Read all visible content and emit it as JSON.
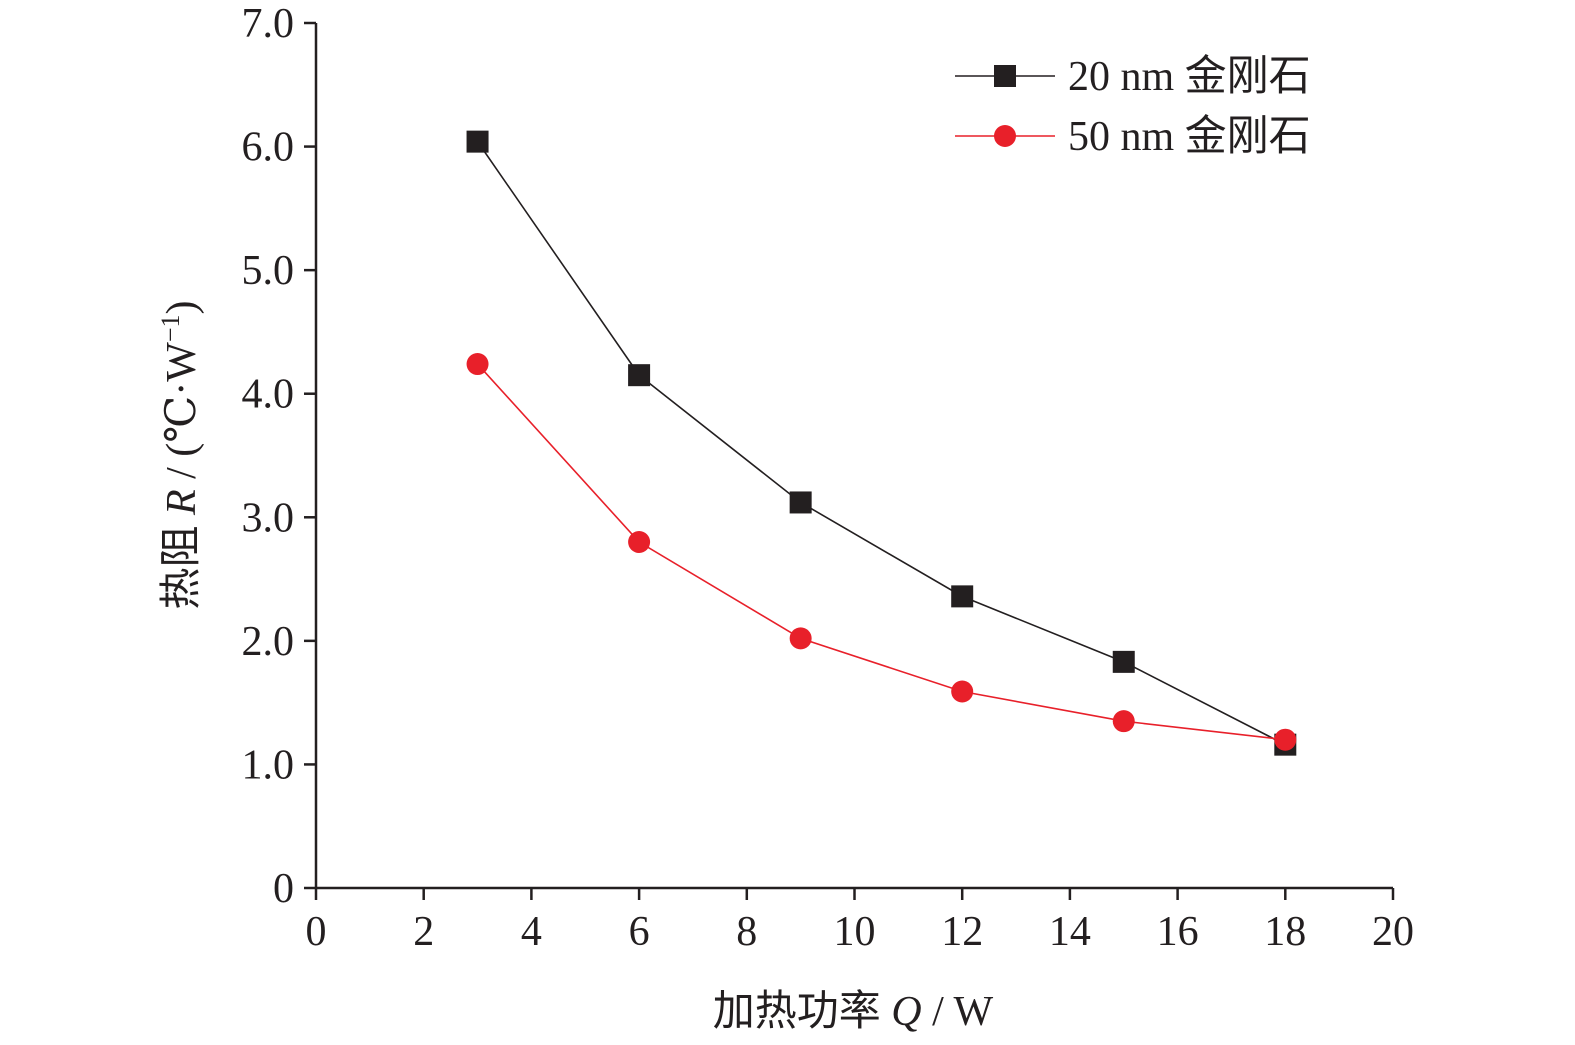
{
  "chart_data": {
    "type": "line",
    "xlabel": {
      "prefix": "加热功率 ",
      "symbol": "Q",
      "suffix": " / W"
    },
    "ylabel": {
      "prefix": "热阻 ",
      "symbol": "R",
      "suffix": " / (℃·W",
      "superscript": "−1",
      "close": ")"
    },
    "xlim": [
      0,
      20
    ],
    "ylim": [
      0,
      7
    ],
    "x_ticks": [
      0,
      2,
      4,
      6,
      8,
      10,
      12,
      14,
      16,
      18,
      20
    ],
    "x_tick_labels": [
      "0",
      "2",
      "4",
      "6",
      "8",
      "10",
      "12",
      "14",
      "16",
      "18",
      "20"
    ],
    "y_ticks": [
      0,
      1,
      2,
      3,
      4,
      5,
      6,
      7
    ],
    "y_tick_labels": [
      "0",
      "1.0",
      "2.0",
      "3.0",
      "4.0",
      "5.0",
      "6.0",
      "7.0"
    ],
    "grid": false,
    "legend_position": "top-right",
    "x": [
      3,
      6,
      9,
      12,
      15,
      18
    ],
    "series": [
      {
        "name": "20 nm 金刚石",
        "marker": "square",
        "color": "#231f20",
        "values": [
          6.04,
          4.15,
          3.12,
          2.36,
          1.83,
          1.16
        ]
      },
      {
        "name": "50 nm 金刚石",
        "marker": "circle",
        "color": "#e8202a",
        "values": [
          4.24,
          2.8,
          2.02,
          1.59,
          1.35,
          1.2
        ]
      }
    ]
  }
}
